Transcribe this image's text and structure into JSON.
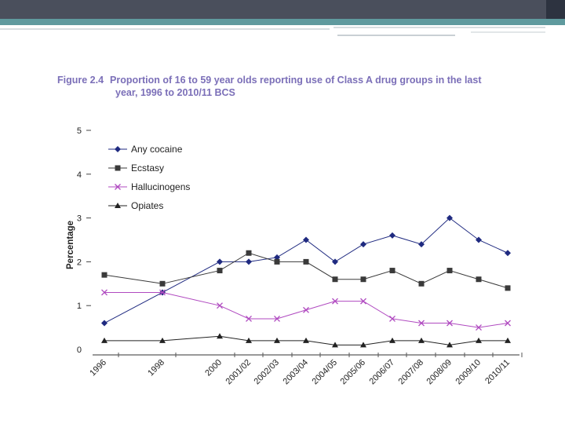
{
  "title": {
    "figure": "Figure 2.4",
    "line1": "Proportion of 16 to 59 year olds reporting use of Class A drug groups in the last",
    "line2": "year, 1996 to 2010/11 BCS"
  },
  "chart_data": {
    "type": "line",
    "title": "Figure 2.4 Proportion of 16 to 59 year olds reporting use of Class A drug groups in the last year, 1996 to 2010/11 BCS",
    "xlabel": "",
    "ylabel": "Percentage",
    "ylim": [
      0,
      5
    ],
    "yticks": [
      "0",
      "1",
      "2",
      "3",
      "4",
      "5"
    ],
    "categories": [
      "1996",
      "1998",
      "2000",
      "2001/02",
      "2002/03",
      "2003/04",
      "2004/05",
      "2005/06",
      "2006/07",
      "2007/08",
      "2008/09",
      "2009/10",
      "2010/11"
    ],
    "legend_position": "top-left",
    "series": [
      {
        "name": "Any cocaine",
        "marker": "diamond",
        "values": [
          0.6,
          1.3,
          2.0,
          2.0,
          2.1,
          2.5,
          2.0,
          2.4,
          2.6,
          2.4,
          3.0,
          2.5,
          2.2
        ]
      },
      {
        "name": "Ecstasy",
        "marker": "square",
        "values": [
          1.7,
          1.5,
          1.8,
          2.2,
          2.0,
          2.0,
          1.6,
          1.6,
          1.8,
          1.5,
          1.8,
          1.6,
          1.4
        ]
      },
      {
        "name": "Hallucinogens",
        "marker": "cross",
        "values": [
          1.3,
          1.3,
          1.0,
          0.7,
          0.7,
          0.9,
          1.1,
          1.1,
          0.7,
          0.6,
          0.6,
          0.5,
          0.6
        ]
      },
      {
        "name": "Opiates",
        "marker": "triangle",
        "values": [
          0.2,
          0.2,
          0.3,
          0.2,
          0.2,
          0.2,
          0.1,
          0.1,
          0.2,
          0.2,
          0.1,
          0.2,
          0.2
        ]
      }
    ]
  },
  "colors": {
    "cocaine": "#1f2a80",
    "ecstasy": "#3a3a3a",
    "hallucinogens": "#b04ac0",
    "opiates": "#222222",
    "title": "#7b6fb8"
  }
}
